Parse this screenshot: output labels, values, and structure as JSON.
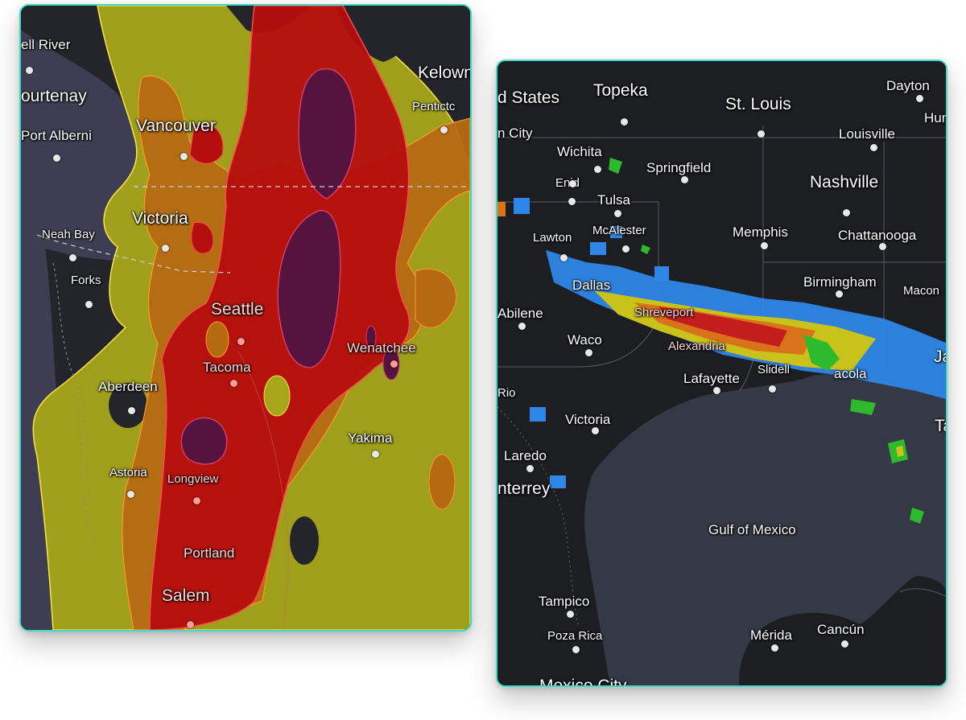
{
  "left_map": {
    "region": "Pacific Northwest",
    "colors": {
      "land": "#23252a",
      "water": "#3e3e52",
      "risk_yellow": "#a7a51a",
      "risk_orange": "#b56a12",
      "risk_red": "#b50e0e",
      "risk_purple": "#55133d",
      "border": "#ff4a4a"
    },
    "labels": {
      "campbell_river": "ell River",
      "courtenay": "ourtenay",
      "port_alberni": "Port Alberni",
      "vancouver": "Vancouver",
      "kelowna": "Kelown",
      "penticton": "Pentictc",
      "victoria": "Victoria",
      "neah_bay": "Neah Bay",
      "forks": "Forks",
      "seattle": "Seattle",
      "wenatchee": "Wenatchee",
      "tacoma": "Tacoma",
      "aberdeen": "Aberdeen",
      "yakima": "Yakima",
      "astoria": "Astoria",
      "longview": "Longview",
      "portland": "Portland",
      "salem": "Salem"
    }
  },
  "right_map": {
    "region": "South Central US / Gulf of Mexico",
    "colors": {
      "land": "#1d1e22",
      "water": "#353845",
      "radar_blue": "#2e87e8",
      "radar_yellow": "#c9c21a",
      "radar_orange": "#d9731a",
      "radar_red": "#c41d1d",
      "radar_green": "#2dbb2d"
    },
    "labels": {
      "united_states": "d States",
      "topeka": "Topeka",
      "st_louis": "St. Louis",
      "dayton": "Dayton",
      "huntington": "Hun",
      "kansas_city": "n City",
      "wichita": "Wichita",
      "springfield": "Springfield",
      "louisville": "Louisville",
      "nashville": "Nashville",
      "enid": "Enid",
      "tulsa": "Tulsa",
      "lawton": "Lawton",
      "mcalester": "McAlester",
      "memphis": "Memphis",
      "chattanooga": "Chattanooga",
      "birmingham": "Birmingham",
      "macon": "Macon",
      "dallas": "Dallas",
      "shreveport": "Shreveport",
      "abilene": "Abilene",
      "waco": "Waco",
      "alexandria": "Alexandria",
      "jacksonville": "Ja",
      "lafayette": "Lafayette",
      "slidell": "Slidell",
      "pensacola": "acola",
      "rio": "Rio",
      "victoria": "Victoria",
      "tampa": "Ta",
      "laredo": "Laredo",
      "monterrey": "nterrey",
      "gulf_of_mexico": "Gulf of Mexico",
      "tampico": "Tampico",
      "poza_rica": "Poza Rica",
      "merida": "Mérida",
      "cancun": "Cancún",
      "mexico_city": "Mexico City"
    }
  }
}
